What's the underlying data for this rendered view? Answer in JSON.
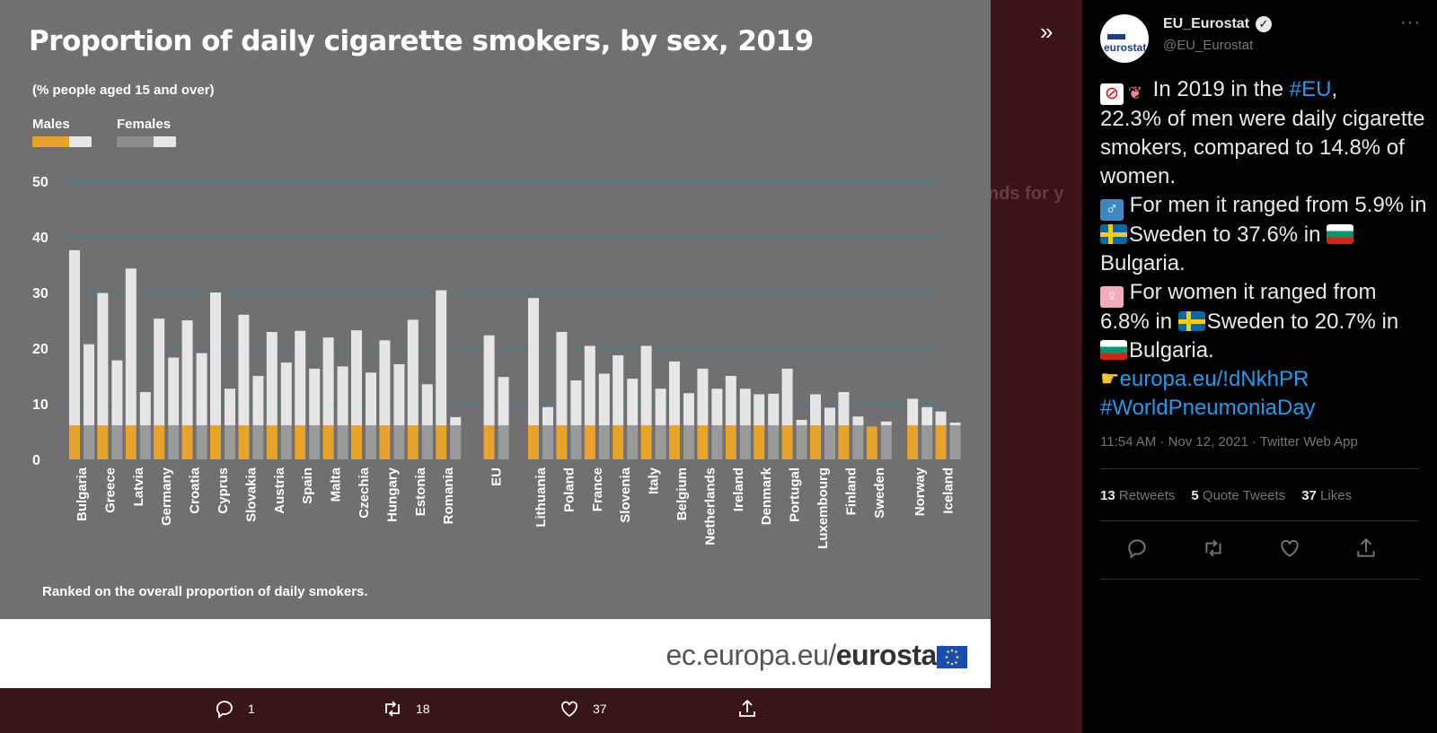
{
  "chart_data": {
    "type": "bar",
    "title": "Proportion of daily cigarette smokers, by sex, 2019",
    "subtitle": "(% people aged 15 and over)",
    "note": "Ranked on the overall proportion of daily smokers.",
    "categories": [
      "Bulgaria",
      "Greece",
      "Latvia",
      "Germany",
      "Croatia",
      "Cyprus",
      "Slovakia",
      "Austria",
      "Spain",
      "Malta",
      "Czechia",
      "Hungary",
      "Estonia",
      "Romania",
      "EU",
      "Lithuania",
      "Poland",
      "France",
      "Slovenia",
      "Italy",
      "Belgium",
      "Netherlands",
      "Ireland",
      "Denmark",
      "Portugal",
      "Luxembourg",
      "Finland",
      "Sweden",
      "Norway",
      "Iceland"
    ],
    "series": [
      {
        "name": "Males",
        "values": [
          37.6,
          29.9,
          34.3,
          25.3,
          25.0,
          30.0,
          26.0,
          22.9,
          23.1,
          21.9,
          23.2,
          21.4,
          25.1,
          30.4,
          22.3,
          29.0,
          22.9,
          20.4,
          18.7,
          20.4,
          17.6,
          16.3,
          15.0,
          11.7,
          16.3,
          11.7,
          12.1,
          5.9,
          10.9,
          8.6
        ]
      },
      {
        "name": "Females",
        "values": [
          20.7,
          17.8,
          12.1,
          18.3,
          19.1,
          12.7,
          15.0,
          17.4,
          16.3,
          16.7,
          15.6,
          17.1,
          13.5,
          7.6,
          14.8,
          9.4,
          14.2,
          15.4,
          14.5,
          12.7,
          11.9,
          12.7,
          12.7,
          11.8,
          7.1,
          9.3,
          7.7,
          6.8,
          9.4,
          6.6
        ]
      }
    ],
    "ylim": [
      0,
      50
    ],
    "yticks": [
      0,
      10,
      20,
      30,
      40,
      50
    ],
    "grid": true,
    "legend_position": "top-left",
    "colors": {
      "male_filter": "#e8a32a",
      "female_filter": "#9a9a9a",
      "paper": "#e6e6e6",
      "grid": "#3d7f93"
    }
  },
  "source": {
    "prefix": "ec.europa.eu/",
    "brand": "eurostat"
  },
  "card_actions": {
    "replies": "1",
    "retweets": "18",
    "likes": "37"
  },
  "tweet": {
    "display_name": "EU_Eurostat",
    "handle": "@EU_Eurostat",
    "avatar_text": "eurostat",
    "lines": {
      "l1_a": "In 2019 in the ",
      "l1_tag": "#EU",
      "l1_b": ",",
      "l2": "22.3% of men were daily cigarette smokers, compared to 14.8% of women.",
      "l3_a": " For men it ranged from 5.9% in ",
      "l3_b": "Sweden to 37.6% in ",
      "l3_c": "Bulgaria.",
      "l4_a": " For women it ranged from 6.8% in ",
      "l4_b": "Sweden to 20.7% in ",
      "l4_c": "Bulgaria.",
      "link": "europa.eu/!dNkhPR",
      "hashtag": "#WorldPneumoniaDay"
    },
    "meta": "11:54 AM · Nov 12, 2021 · Twitter Web App",
    "stats": {
      "retweets_count": "13",
      "retweets_label": "Retweets",
      "quotes_count": "5",
      "quotes_label": "Quote Tweets",
      "likes_count": "37",
      "likes_label": "Likes"
    }
  }
}
